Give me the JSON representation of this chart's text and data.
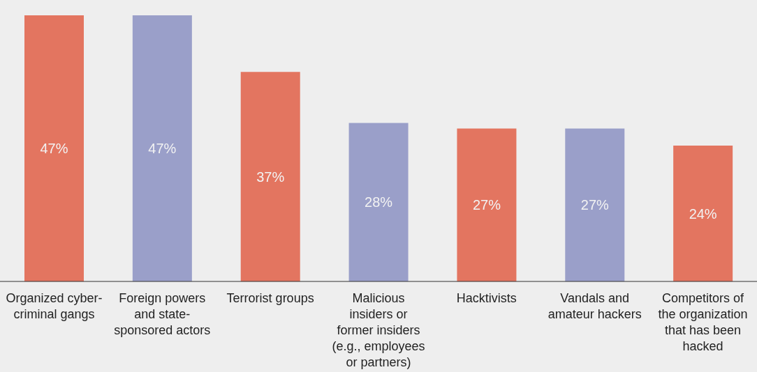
{
  "chart_data": {
    "type": "bar",
    "categories": [
      "Organized cyber-criminal gangs",
      "Foreign powers and state-sponsored actors",
      "Terrorist groups",
      "Malicious insiders or former insiders (e.g., employees or partners)",
      "Hacktivists",
      "Vandals and amateur hackers",
      "Competitors of the organization that has been hacked"
    ],
    "values": [
      47,
      47,
      37,
      28,
      27,
      27,
      24
    ],
    "colors": [
      "#e37560",
      "#9a9fc9",
      "#e37560",
      "#9a9fc9",
      "#e37560",
      "#9a9fc9",
      "#e37560"
    ],
    "value_labels": [
      "47%",
      "47%",
      "37%",
      "28%",
      "27%",
      "27%",
      "24%"
    ],
    "grid": false,
    "legend": false
  }
}
